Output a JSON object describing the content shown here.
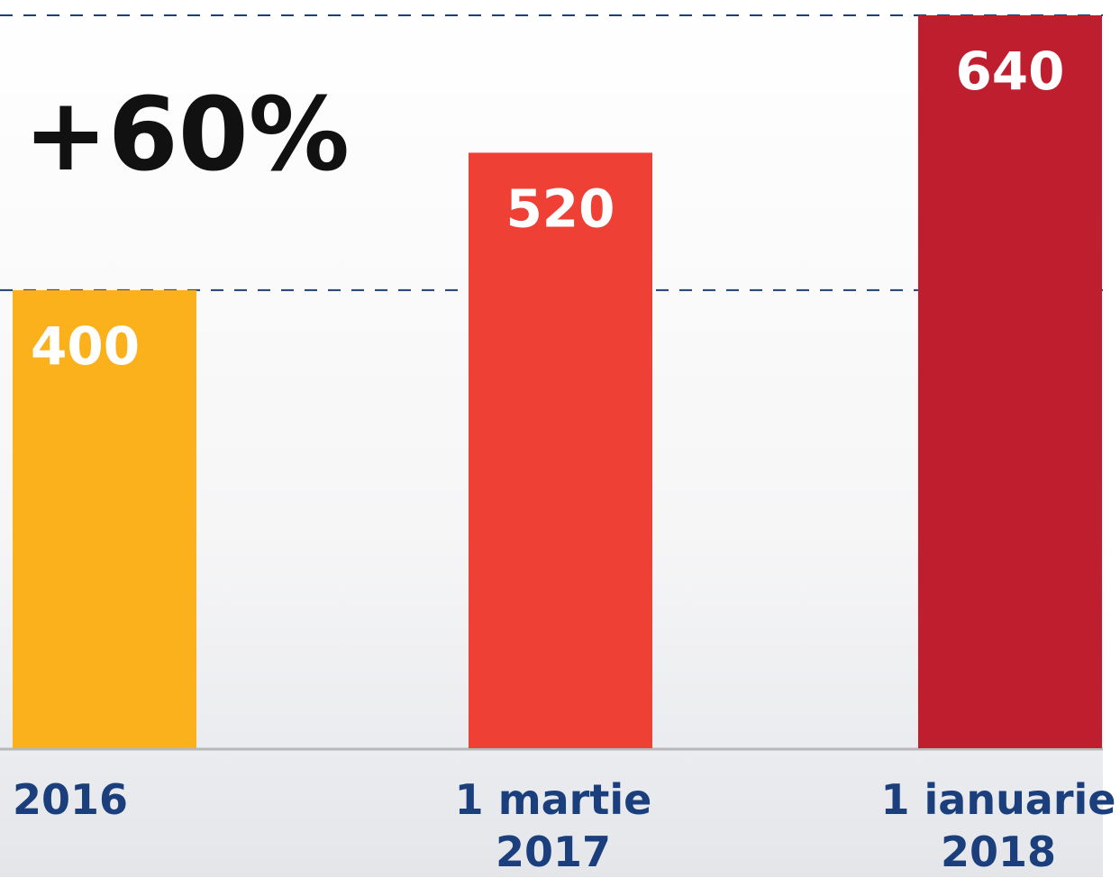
{
  "chart_data": {
    "type": "bar",
    "annotation": "+60%",
    "categories": [
      "2016",
      "1 martie 2017",
      "1 ianuarie 2018"
    ],
    "values": [
      400,
      520,
      640
    ],
    "colors": [
      "#fbb11b",
      "#ef4036",
      "#be1e2d"
    ],
    "ylim": [
      0,
      640
    ]
  }
}
